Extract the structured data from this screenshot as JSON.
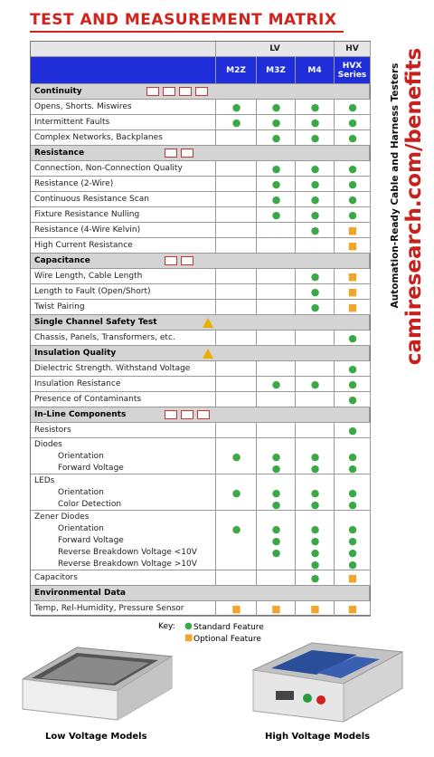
{
  "header": {
    "title": "TEST AND MEASUREMENT MATRIX"
  },
  "side": {
    "tagline": "Automation-Ready Cable and Harness Testers",
    "url": "camiresearch.com/benefits"
  },
  "table": {
    "groups": [
      {
        "label": "LV",
        "span": 3
      },
      {
        "label": "HV",
        "span": 1
      }
    ],
    "columns": [
      "M2Z",
      "M3Z",
      "M4",
      "HVX Series"
    ],
    "rows": [
      {
        "section": "Continuity"
      },
      {
        "label": "Opens, Shorts. Miswires",
        "cells": [
          "●",
          "●",
          "●",
          "●"
        ]
      },
      {
        "label": "Intermittent Faults",
        "cells": [
          "●",
          "●",
          "●",
          "●"
        ]
      },
      {
        "label": "Complex Networks, Backplanes",
        "cells": [
          null,
          "●",
          "●",
          "●"
        ]
      },
      {
        "section": "Resistance"
      },
      {
        "label": "Connection, Non-Connection Quality",
        "cells": [
          null,
          "●",
          "●",
          "●"
        ]
      },
      {
        "label": "Resistance (2-Wire)",
        "cells": [
          null,
          "●",
          "●",
          "●"
        ]
      },
      {
        "label": "Continuous Resistance Scan",
        "cells": [
          null,
          "●",
          "●",
          "●"
        ]
      },
      {
        "label": "Fixture Resistance Nulling",
        "cells": [
          null,
          "●",
          "●",
          "●"
        ]
      },
      {
        "label": "Resistance (4-Wire Kelvin)",
        "cells": [
          null,
          null,
          "●",
          "■"
        ]
      },
      {
        "label": "High Current Resistance",
        "cells": [
          null,
          null,
          null,
          "■"
        ]
      },
      {
        "section": "Capacitance"
      },
      {
        "label": "Wire Length, Cable Length",
        "cells": [
          null,
          null,
          "●",
          "■"
        ]
      },
      {
        "label": "Length to Fault (Open/Short)",
        "cells": [
          null,
          null,
          "●",
          "■"
        ]
      },
      {
        "label": "Twist Pairing",
        "cells": [
          null,
          null,
          "●",
          "■"
        ]
      },
      {
        "section": "Single Channel Safety Test"
      },
      {
        "label": "Chassis, Panels, Transformers, etc.",
        "cells": [
          null,
          null,
          null,
          "●"
        ]
      },
      {
        "section": "Insulation Quality"
      },
      {
        "label": "Dielectric Strength. Withstand Voltage",
        "cells": [
          null,
          null,
          null,
          "●"
        ]
      },
      {
        "label": "Insulation Resistance",
        "cells": [
          null,
          "●",
          "●",
          "●"
        ]
      },
      {
        "label": "Presence of Contaminants",
        "cells": [
          null,
          null,
          null,
          "●"
        ]
      },
      {
        "section": "In-Line Components"
      },
      {
        "label": "Resistors",
        "cells": [
          null,
          null,
          null,
          "●"
        ]
      },
      {
        "label": "Diodes",
        "items": [
          {
            "label": "Orientation",
            "cells": [
              "●",
              "●",
              "●",
              "●"
            ]
          },
          {
            "label": "Forward Voltage",
            "cells": [
              null,
              "●",
              "●",
              "●"
            ]
          }
        ]
      },
      {
        "label": "LEDs",
        "items": [
          {
            "label": "Orientation",
            "cells": [
              "●",
              "●",
              "●",
              "●"
            ]
          },
          {
            "label": "Color Detection",
            "cells": [
              null,
              "●",
              "●",
              "●"
            ]
          }
        ]
      },
      {
        "label": "Zener Diodes",
        "items": [
          {
            "label": "Orientation",
            "cells": [
              "●",
              "●",
              "●",
              "●"
            ]
          },
          {
            "label": "Forward Voltage",
            "cells": [
              null,
              "●",
              "●",
              "●"
            ]
          },
          {
            "label": "Reverse Breakdown Voltage <10V",
            "cells": [
              null,
              "●",
              "●",
              "●"
            ]
          },
          {
            "label": "Reverse Breakdown Voltage >10V",
            "cells": [
              null,
              null,
              "●",
              "●"
            ]
          }
        ]
      },
      {
        "label": "Capacitors",
        "cells": [
          null,
          null,
          "●",
          "■"
        ]
      },
      {
        "section": "Environmental Data"
      },
      {
        "label": "Temp, Rel-Humidity, Pressure Sensor",
        "cells": [
          "■",
          "■",
          "■",
          "■"
        ]
      }
    ]
  },
  "key": {
    "label": "Key:",
    "items": [
      {
        "symbol": "●",
        "text": "Standard Feature"
      },
      {
        "symbol": "■",
        "text": "Optional Feature"
      }
    ]
  },
  "products": [
    {
      "label": "Low Voltage Models"
    },
    {
      "label": "High Voltage Models"
    }
  ]
}
